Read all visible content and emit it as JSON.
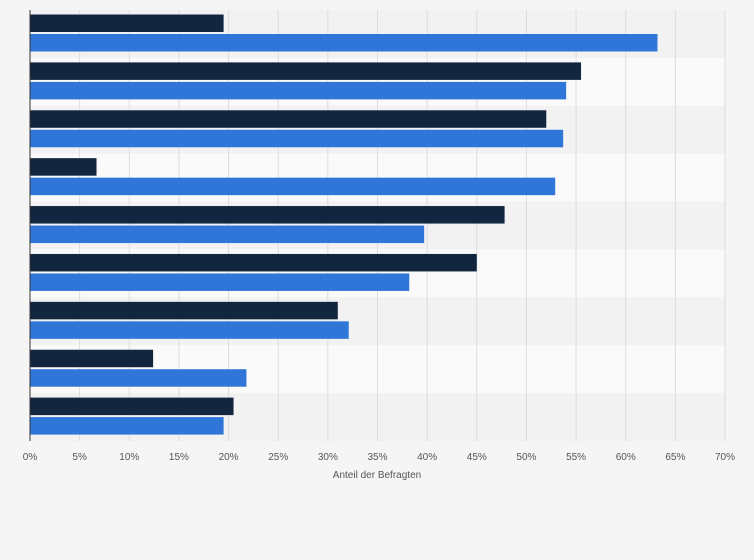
{
  "chart_data": {
    "type": "bar",
    "orientation": "horizontal",
    "categories": [
      "",
      "",
      "",
      "",
      "",
      "",
      "",
      "",
      ""
    ],
    "series": [
      {
        "color": "#13263f",
        "values": [
          19.5,
          55.5,
          52.0,
          6.7,
          47.8,
          45.0,
          31.0,
          12.4,
          20.5
        ]
      },
      {
        "color": "#2f76d8",
        "values": [
          63.2,
          54.0,
          53.7,
          52.9,
          39.7,
          38.2,
          32.1,
          21.8,
          19.5
        ]
      }
    ],
    "xlabel": "Anteil der Befragten",
    "xlim": [
      0,
      70
    ],
    "xticks": [
      0,
      5,
      10,
      15,
      20,
      25,
      30,
      35,
      40,
      45,
      50,
      55,
      60,
      65,
      70
    ],
    "tick_suffix": "%",
    "grid": true,
    "legend": "none"
  }
}
